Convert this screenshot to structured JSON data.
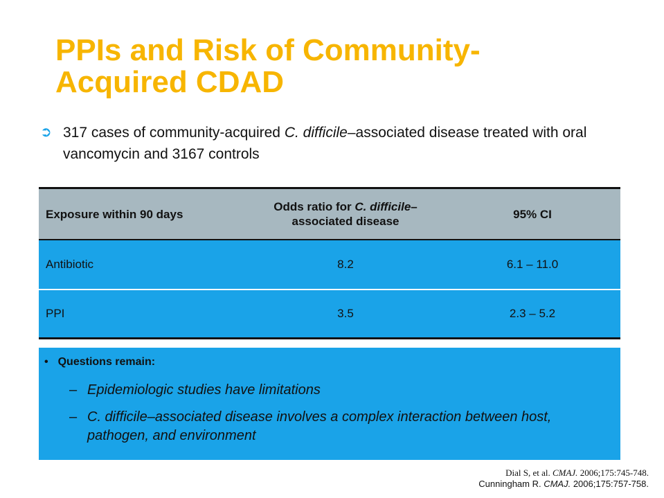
{
  "slide": {
    "title_line1": "PPIs and Risk of Community-",
    "title_line2": "Acquired CDAD",
    "lead_icon": "arrow-bullet-icon",
    "lead_part1": "317 cases of community-acquired ",
    "lead_italic": "C. difficile",
    "lead_part2": "–associated disease treated with oral vancomycin and 3167 controls"
  },
  "table": {
    "headers": {
      "exposure": "Exposure within 90 days",
      "odds_part1": "Odds ratio for ",
      "odds_italic": "C. difficile",
      "odds_part2": "–",
      "odds_line2": "associated disease",
      "ci": "95% CI"
    },
    "rows": [
      {
        "exposure": "Antibiotic",
        "odds": "8.2",
        "ci": "6.1 – 11.0"
      },
      {
        "exposure": "PPI",
        "odds": "3.5",
        "ci": "2.3 – 5.2"
      }
    ]
  },
  "questions": {
    "bullet": "•",
    "heading": "Questions remain:",
    "dash": "–",
    "item1": "Epidemiologic studies have limitations",
    "item2": "C. difficile–associated disease involves a complex interaction between host, pathogen, and environment"
  },
  "references": {
    "ref1_pre": "Dial S, et al. ",
    "ref1_journal": "CMAJ.",
    "ref1_post": " 2006;175:745-748.",
    "ref2_pre": "Cunningham R. ",
    "ref2_journal": "CMAJ.",
    "ref2_post": " 2006;175:757-758."
  },
  "colors": {
    "title": "#f7b500",
    "accent": "#1aa3e8",
    "header_bg": "#a7b8c0"
  }
}
